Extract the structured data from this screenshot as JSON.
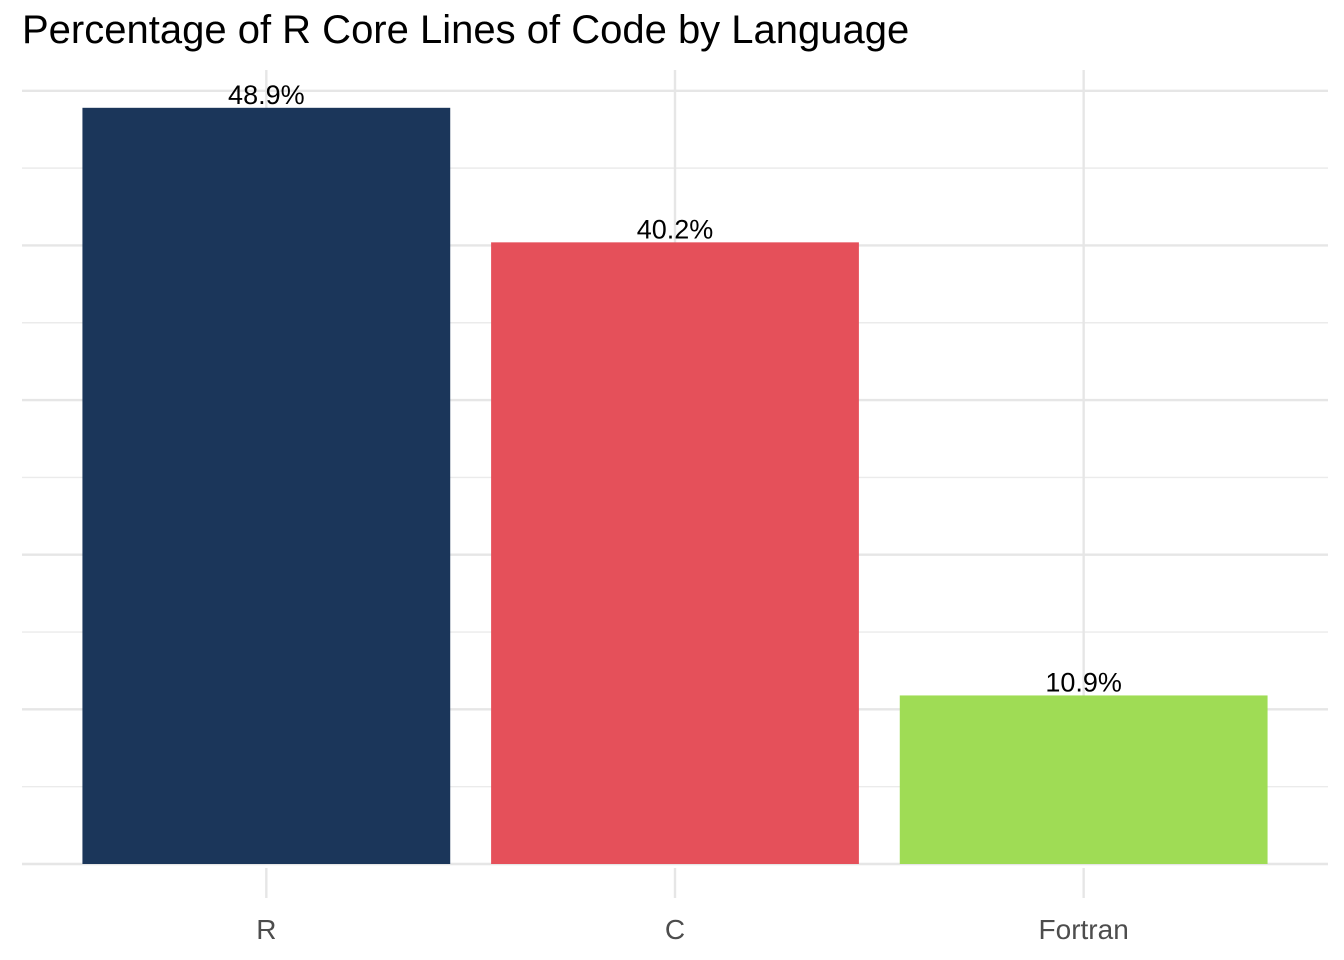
{
  "chart_data": {
    "type": "bar",
    "title": "Percentage of R Core Lines of Code by Language",
    "categories": [
      "R",
      "C",
      "Fortran"
    ],
    "values": [
      48.9,
      40.2,
      10.9
    ],
    "data_labels": [
      "48.9%",
      "40.2%",
      "10.9%"
    ],
    "colors": [
      "#1b365a",
      "#e5505a",
      "#9fdc55"
    ],
    "xlabel": "",
    "ylabel": "",
    "ylim": [
      0,
      51.345
    ],
    "y_gridlines_major": [
      0,
      10,
      20,
      30,
      40,
      50
    ],
    "y_gridlines_minor": [
      5,
      15,
      25,
      35,
      45
    ],
    "grid": true,
    "legend": "none"
  }
}
